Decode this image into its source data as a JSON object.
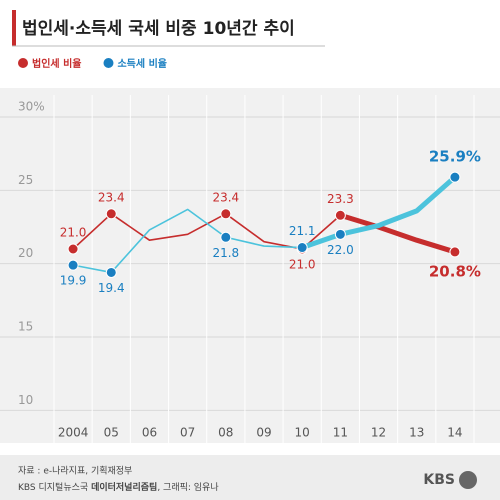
{
  "chart_data": {
    "type": "line",
    "title": "법인세·소득세 국세 비중 10년간 추이",
    "categories": [
      "2004",
      "05",
      "06",
      "07",
      "08",
      "09",
      "10",
      "11",
      "12",
      "13",
      "14"
    ],
    "series": [
      {
        "name": "법인세 비율",
        "color": "#c62d2d",
        "highlight_from": 7,
        "values": [
          21.0,
          23.4,
          21.6,
          22.0,
          23.4,
          21.5,
          21.0,
          23.3,
          22.5,
          21.6,
          20.8
        ],
        "value_labels": [
          "21.0",
          "23.4",
          null,
          null,
          "23.4",
          null,
          "21.0",
          "23.3",
          null,
          null,
          "20.8%"
        ]
      },
      {
        "name": "소득세 비율",
        "color": "#1a7fc1",
        "line_color": "#4cc3dc",
        "highlight_from": 6,
        "values": [
          19.9,
          19.4,
          22.3,
          23.7,
          21.8,
          21.2,
          21.1,
          22.0,
          22.6,
          23.6,
          25.9
        ],
        "value_labels": [
          "19.9",
          "19.4",
          null,
          null,
          "21.8",
          null,
          "21.1",
          "22.0",
          null,
          null,
          "25.9%"
        ]
      }
    ],
    "ylim": [
      9,
      31.5
    ],
    "yticks": [
      10,
      15,
      20,
      25,
      {
        "value": 30,
        "label": "30%"
      }
    ],
    "grid": true,
    "source": "자료 : e-나라지표, 기획재정부",
    "credit_org": "KBS 디지털뉴스국",
    "credit_team": "데이터저널리즘팀",
    "credit_graphic": ", 그래픽: 임유나",
    "logo": "KBS"
  }
}
